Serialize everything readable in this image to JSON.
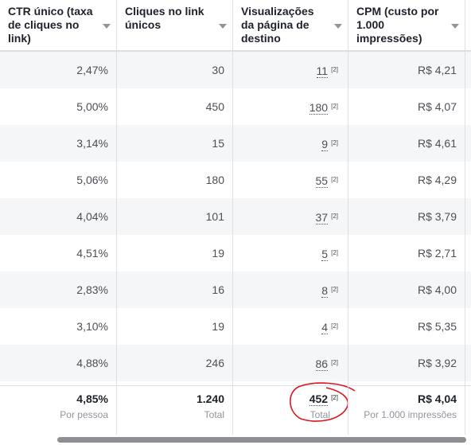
{
  "table": {
    "headers": [
      "CTR único (taxa de cliques no link)",
      "Cliques no link únicos",
      "Visualizações da página de destino",
      "CPM (custo por 1.000 impressões)"
    ],
    "rows": [
      {
        "cells": [
          "2,47%",
          "30",
          "11",
          "R$ 4,21"
        ],
        "note": "[2]"
      },
      {
        "cells": [
          "5,00%",
          "450",
          "180",
          "R$ 4,07"
        ],
        "note": "[2]"
      },
      {
        "cells": [
          "3,14%",
          "15",
          "9",
          "R$ 4,61"
        ],
        "note": "[2]"
      },
      {
        "cells": [
          "5,06%",
          "180",
          "55",
          "R$ 4,29"
        ],
        "note": "[2]"
      },
      {
        "cells": [
          "4,04%",
          "101",
          "37",
          "R$ 3,79"
        ],
        "note": "[2]"
      },
      {
        "cells": [
          "4,51%",
          "19",
          "5",
          "R$ 2,71"
        ],
        "note": "[2]"
      },
      {
        "cells": [
          "2,83%",
          "16",
          "8",
          "R$ 4,00"
        ],
        "note": "[2]"
      },
      {
        "cells": [
          "3,10%",
          "19",
          "4",
          "R$ 5,35"
        ],
        "note": "[2]"
      },
      {
        "cells": [
          "4,88%",
          "246",
          "86",
          "R$ 3,92"
        ],
        "note": "[2]"
      }
    ],
    "footer": [
      {
        "value": "4,85%",
        "label": "Por pessoa"
      },
      {
        "value": "1.240",
        "label": "Total"
      },
      {
        "value": "452",
        "note": "[2]",
        "label": "Total"
      },
      {
        "value": "R$ 4,04",
        "label": "Por 1.000 impressões"
      }
    ]
  }
}
